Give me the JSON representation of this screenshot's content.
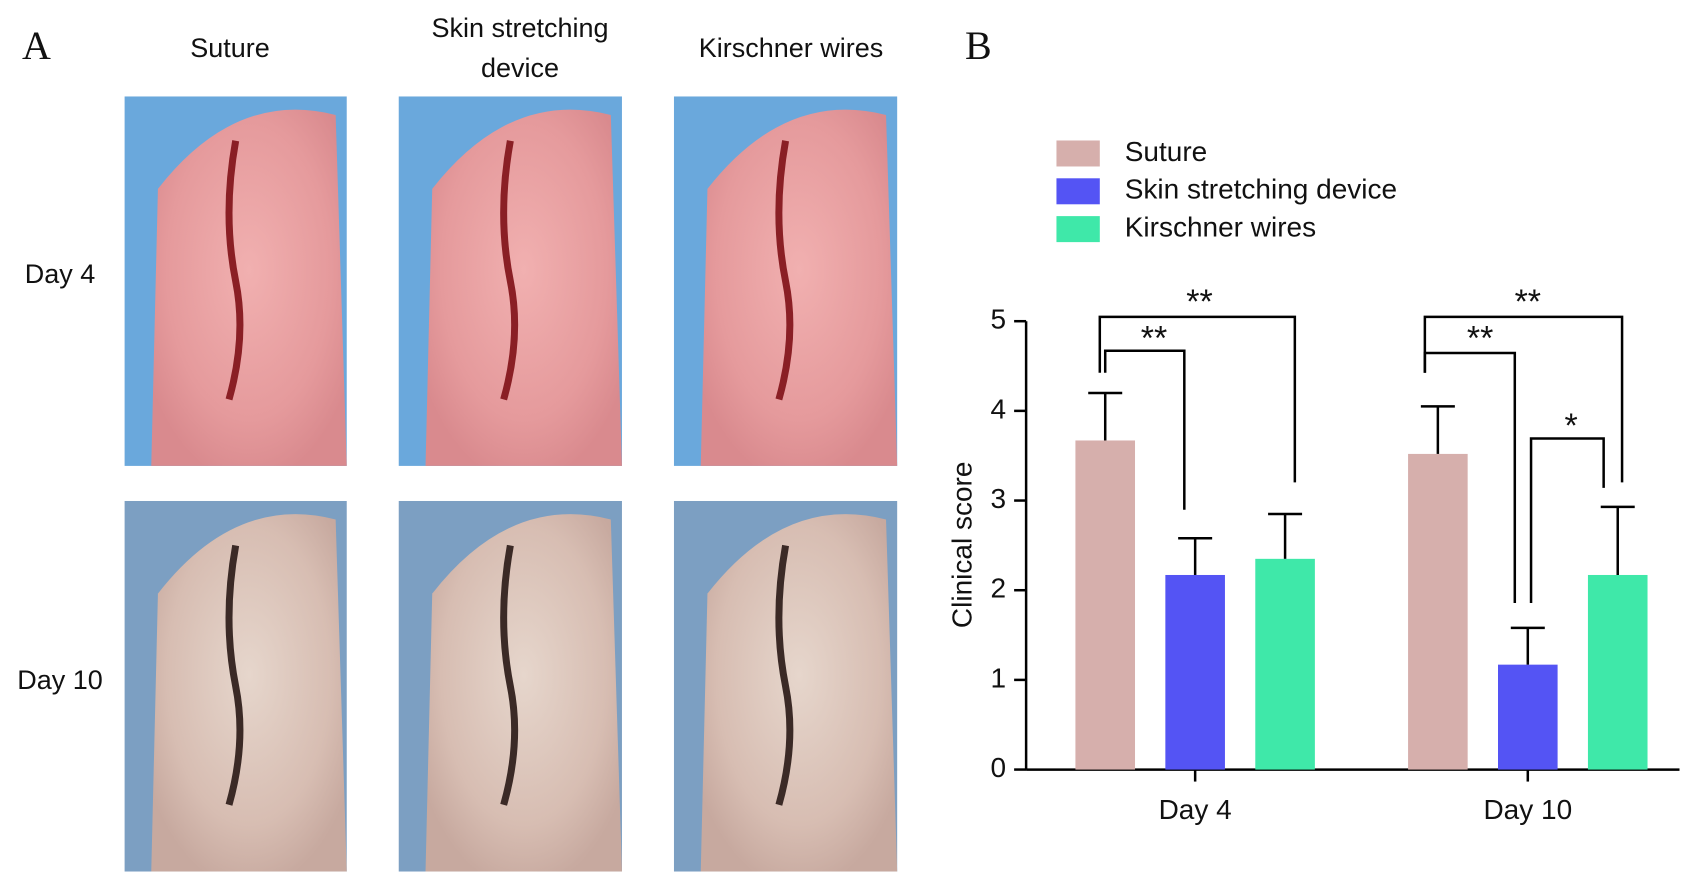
{
  "panel_a": {
    "label": "A",
    "column_titles": [
      "Suture",
      "Skin stretching device",
      "Kirschner wires"
    ],
    "row_titles": [
      "Day 4",
      "Day 10"
    ]
  },
  "chart_data": {
    "type": "bar",
    "panel_label": "B",
    "ylabel": "Clinical score",
    "categories": [
      "Day 4",
      "Day 10"
    ],
    "series": [
      {
        "name": "Suture",
        "color": "#d6afac",
        "values": [
          3.67,
          3.52
        ],
        "errors": [
          0.53,
          0.53
        ]
      },
      {
        "name": "Skin stretching device",
        "color": "#5454f4",
        "values": [
          2.17,
          1.17
        ],
        "errors": [
          0.41,
          0.41
        ]
      },
      {
        "name": "Kirschner wires",
        "color": "#3fe8a9",
        "values": [
          2.35,
          2.17
        ],
        "errors": [
          0.5,
          0.76
        ]
      }
    ],
    "ylim": [
      0,
      5
    ],
    "yticks": [
      0,
      1,
      2,
      3,
      4,
      5
    ],
    "annotations": [
      "**",
      "**",
      "**",
      "**",
      "*"
    ]
  }
}
